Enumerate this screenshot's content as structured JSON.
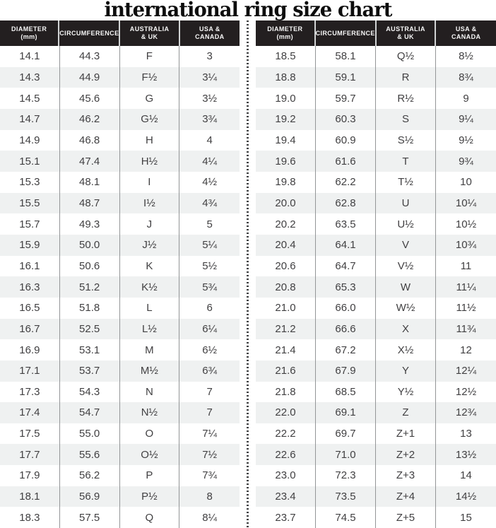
{
  "title": "international ring size chart",
  "header_lines": [
    [
      "DIAMETER",
      "(mm)"
    ],
    [
      "CIRCUMFERENCE"
    ],
    [
      "AUSTRALIA",
      "& UK"
    ],
    [
      "USA &",
      "CANADA"
    ]
  ],
  "colors": {
    "header_bg": "#231f20",
    "header_text": "#f7f7f7",
    "body_text": "#414042",
    "row_stripe": "#eff1f1",
    "column_line": "#939597",
    "divider_dots": "#3f4042",
    "title_text": "#0d0d0d",
    "background": "#ffffff"
  },
  "chart_data": {
    "type": "table",
    "title": "international ring size chart",
    "columns": [
      "DIAMETER (mm)",
      "CIRCUMFERENCE",
      "AUSTRALIA & UK",
      "USA & CANADA"
    ],
    "left_rows": [
      [
        "14.1",
        "44.3",
        "F",
        "3"
      ],
      [
        "14.3",
        "44.9",
        "F½",
        "3¼"
      ],
      [
        "14.5",
        "45.6",
        "G",
        "3½"
      ],
      [
        "14.7",
        "46.2",
        "G½",
        "3¾"
      ],
      [
        "14.9",
        "46.8",
        "H",
        "4"
      ],
      [
        "15.1",
        "47.4",
        "H½",
        "4¼"
      ],
      [
        "15.3",
        "48.1",
        "I",
        "4½"
      ],
      [
        "15.5",
        "48.7",
        "I½",
        "4¾"
      ],
      [
        "15.7",
        "49.3",
        "J",
        "5"
      ],
      [
        "15.9",
        "50.0",
        "J½",
        "5¼"
      ],
      [
        "16.1",
        "50.6",
        "K",
        "5½"
      ],
      [
        "16.3",
        "51.2",
        "K½",
        "5¾"
      ],
      [
        "16.5",
        "51.8",
        "L",
        "6"
      ],
      [
        "16.7",
        "52.5",
        "L½",
        "6¼"
      ],
      [
        "16.9",
        "53.1",
        "M",
        "6½"
      ],
      [
        "17.1",
        "53.7",
        "M½",
        "6¾"
      ],
      [
        "17.3",
        "54.3",
        "N",
        "7"
      ],
      [
        "17.4",
        "54.7",
        "N½",
        "7"
      ],
      [
        "17.5",
        "55.0",
        "O",
        "7¼"
      ],
      [
        "17.7",
        "55.6",
        "O½",
        "7½"
      ],
      [
        "17.9",
        "56.2",
        "P",
        "7¾"
      ],
      [
        "18.1",
        "56.9",
        "P½",
        "8"
      ],
      [
        "18.3",
        "57.5",
        "Q",
        "8¼"
      ]
    ],
    "right_rows": [
      [
        "18.5",
        "58.1",
        "Q½",
        "8½"
      ],
      [
        "18.8",
        "59.1",
        "R",
        "8¾"
      ],
      [
        "19.0",
        "59.7",
        "R½",
        "9"
      ],
      [
        "19.2",
        "60.3",
        "S",
        "9¼"
      ],
      [
        "19.4",
        "60.9",
        "S½",
        "9½"
      ],
      [
        "19.6",
        "61.6",
        "T",
        "9¾"
      ],
      [
        "19.8",
        "62.2",
        "T½",
        "10"
      ],
      [
        "20.0",
        "62.8",
        "U",
        "10¼"
      ],
      [
        "20.2",
        "63.5",
        "U½",
        "10½"
      ],
      [
        "20.4",
        "64.1",
        "V",
        "10¾"
      ],
      [
        "20.6",
        "64.7",
        "V½",
        "11"
      ],
      [
        "20.8",
        "65.3",
        "W",
        "11¼"
      ],
      [
        "21.0",
        "66.0",
        "W½",
        "11½"
      ],
      [
        "21.2",
        "66.6",
        "X",
        "11¾"
      ],
      [
        "21.4",
        "67.2",
        "X½",
        "12"
      ],
      [
        "21.6",
        "67.9",
        "Y",
        "12¼"
      ],
      [
        "21.8",
        "68.5",
        "Y½",
        "12½"
      ],
      [
        "22.0",
        "69.1",
        "Z",
        "12¾"
      ],
      [
        "22.2",
        "69.7",
        "Z+1",
        "13"
      ],
      [
        "22.6",
        "71.0",
        "Z+2",
        "13½"
      ],
      [
        "23.0",
        "72.3",
        "Z+3",
        "14"
      ],
      [
        "23.4",
        "73.5",
        "Z+4",
        "14½"
      ],
      [
        "23.7",
        "74.5",
        "Z+5",
        "15"
      ]
    ]
  }
}
